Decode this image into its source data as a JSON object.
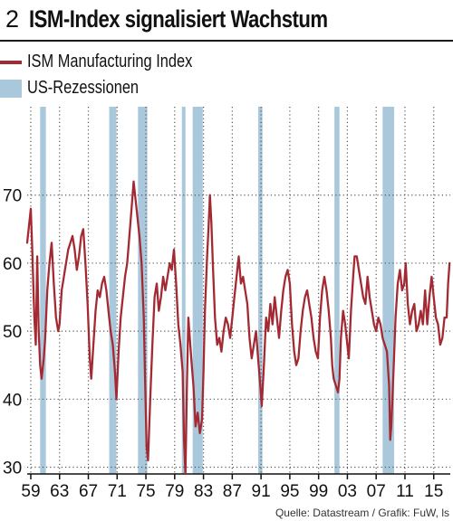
{
  "header": {
    "figure_number": "2",
    "title": "ISM-Index signalisiert Wachstum"
  },
  "legend": [
    {
      "label": "ISM Manufacturing Index",
      "color": "#a32a33",
      "kind": "line"
    },
    {
      "label": "US-Rezessionen",
      "color": "#a9c8dc",
      "kind": "band"
    }
  ],
  "source": "Quelle: Datastream / Grafik: FuW, ls",
  "chart_data": {
    "type": "line",
    "title": "ISM-Index signalisiert Wachstum",
    "xlabel": "",
    "ylabel": "",
    "xlim": [
      1958.5,
      2017.3
    ],
    "ylim": [
      29,
      83
    ],
    "x_tick_labels": [
      "59",
      "63",
      "67",
      "71",
      "75",
      "79",
      "83",
      "87",
      "91",
      "95",
      "99",
      "03",
      "07",
      "11",
      "15"
    ],
    "x_tick_years": [
      1959,
      1963,
      1967,
      1971,
      1975,
      1979,
      1983,
      1987,
      1991,
      1995,
      1999,
      2003,
      2007,
      2011,
      2015
    ],
    "y_ticks": [
      30,
      40,
      50,
      60,
      70
    ],
    "grid": "dotted",
    "recessions": [
      [
        1960.3,
        1961.1
      ],
      [
        1969.9,
        1970.9
      ],
      [
        1973.9,
        1975.2
      ],
      [
        1980.0,
        1980.5
      ],
      [
        1981.5,
        1982.9
      ],
      [
        1990.6,
        1991.2
      ],
      [
        2001.2,
        2001.9
      ],
      [
        2007.9,
        2009.5
      ]
    ],
    "series": [
      {
        "name": "ISM Manufacturing Index",
        "color": "#a32a33",
        "points": [
          [
            1958.5,
            63
          ],
          [
            1958.8,
            66
          ],
          [
            1959.0,
            68
          ],
          [
            1959.2,
            62
          ],
          [
            1959.5,
            52
          ],
          [
            1959.7,
            48
          ],
          [
            1959.9,
            61
          ],
          [
            1960.1,
            50
          ],
          [
            1960.3,
            45
          ],
          [
            1960.5,
            43
          ],
          [
            1960.8,
            46
          ],
          [
            1961.0,
            49
          ],
          [
            1961.3,
            56
          ],
          [
            1961.6,
            60
          ],
          [
            1961.9,
            63
          ],
          [
            1962.2,
            57
          ],
          [
            1962.5,
            52
          ],
          [
            1962.8,
            50
          ],
          [
            1963.0,
            51
          ],
          [
            1963.3,
            56
          ],
          [
            1963.6,
            58
          ],
          [
            1963.9,
            60
          ],
          [
            1964.2,
            62
          ],
          [
            1964.5,
            63
          ],
          [
            1964.8,
            64
          ],
          [
            1965.1,
            62
          ],
          [
            1965.4,
            59
          ],
          [
            1965.7,
            61
          ],
          [
            1966.0,
            64
          ],
          [
            1966.3,
            65
          ],
          [
            1966.6,
            60
          ],
          [
            1966.9,
            54
          ],
          [
            1967.2,
            46
          ],
          [
            1967.4,
            43
          ],
          [
            1967.7,
            48
          ],
          [
            1968.0,
            53
          ],
          [
            1968.3,
            56
          ],
          [
            1968.6,
            55
          ],
          [
            1968.9,
            57
          ],
          [
            1969.2,
            58
          ],
          [
            1969.5,
            56
          ],
          [
            1969.8,
            53
          ],
          [
            1970.1,
            50
          ],
          [
            1970.4,
            48
          ],
          [
            1970.7,
            44
          ],
          [
            1970.9,
            40
          ],
          [
            1971.2,
            47
          ],
          [
            1971.5,
            52
          ],
          [
            1971.8,
            55
          ],
          [
            1972.1,
            58
          ],
          [
            1972.4,
            60
          ],
          [
            1972.7,
            64
          ],
          [
            1973.0,
            68
          ],
          [
            1973.3,
            72
          ],
          [
            1973.5,
            70
          ],
          [
            1973.8,
            67
          ],
          [
            1974.1,
            64
          ],
          [
            1974.4,
            60
          ],
          [
            1974.7,
            52
          ],
          [
            1974.9,
            42
          ],
          [
            1975.1,
            33
          ],
          [
            1975.3,
            31
          ],
          [
            1975.6,
            40
          ],
          [
            1975.9,
            48
          ],
          [
            1976.2,
            55
          ],
          [
            1976.5,
            57
          ],
          [
            1976.8,
            53
          ],
          [
            1977.1,
            55
          ],
          [
            1977.4,
            58
          ],
          [
            1977.7,
            56
          ],
          [
            1978.0,
            58
          ],
          [
            1978.3,
            60
          ],
          [
            1978.6,
            59
          ],
          [
            1978.9,
            62
          ],
          [
            1979.2,
            57
          ],
          [
            1979.5,
            51
          ],
          [
            1979.8,
            48
          ],
          [
            1980.1,
            44
          ],
          [
            1980.3,
            34
          ],
          [
            1980.5,
            29
          ],
          [
            1980.7,
            42
          ],
          [
            1980.9,
            52
          ],
          [
            1981.1,
            49
          ],
          [
            1981.3,
            46
          ],
          [
            1981.6,
            42
          ],
          [
            1981.9,
            36
          ],
          [
            1982.2,
            38
          ],
          [
            1982.5,
            35
          ],
          [
            1982.8,
            37
          ],
          [
            1983.0,
            44
          ],
          [
            1983.2,
            53
          ],
          [
            1983.5,
            61
          ],
          [
            1983.7,
            65
          ],
          [
            1983.9,
            70
          ],
          [
            1984.1,
            66
          ],
          [
            1984.3,
            60
          ],
          [
            1984.6,
            52
          ],
          [
            1984.9,
            48
          ],
          [
            1985.2,
            49
          ],
          [
            1985.5,
            47
          ],
          [
            1985.8,
            50
          ],
          [
            1986.1,
            52
          ],
          [
            1986.4,
            51
          ],
          [
            1986.7,
            49
          ],
          [
            1987.0,
            52
          ],
          [
            1987.3,
            55
          ],
          [
            1987.6,
            58
          ],
          [
            1987.9,
            61
          ],
          [
            1988.2,
            57
          ],
          [
            1988.5,
            58
          ],
          [
            1988.8,
            56
          ],
          [
            1989.1,
            54
          ],
          [
            1989.4,
            49
          ],
          [
            1989.7,
            46
          ],
          [
            1990.0,
            48
          ],
          [
            1990.3,
            50
          ],
          [
            1990.6,
            46
          ],
          [
            1990.9,
            42
          ],
          [
            1991.1,
            39
          ],
          [
            1991.4,
            45
          ],
          [
            1991.7,
            52
          ],
          [
            1992.0,
            50
          ],
          [
            1992.3,
            54
          ],
          [
            1992.6,
            51
          ],
          [
            1992.9,
            55
          ],
          [
            1993.2,
            52
          ],
          [
            1993.5,
            49
          ],
          [
            1993.8,
            53
          ],
          [
            1994.1,
            56
          ],
          [
            1994.4,
            58
          ],
          [
            1994.7,
            59
          ],
          [
            1995.0,
            57
          ],
          [
            1995.3,
            51
          ],
          [
            1995.6,
            47
          ],
          [
            1995.9,
            45
          ],
          [
            1996.2,
            46
          ],
          [
            1996.5,
            50
          ],
          [
            1996.8,
            53
          ],
          [
            1997.1,
            55
          ],
          [
            1997.4,
            56
          ],
          [
            1997.7,
            54
          ],
          [
            1998.0,
            52
          ],
          [
            1998.3,
            49
          ],
          [
            1998.6,
            47
          ],
          [
            1998.9,
            46
          ],
          [
            1999.2,
            52
          ],
          [
            1999.5,
            56
          ],
          [
            1999.8,
            58
          ],
          [
            2000.1,
            56
          ],
          [
            2000.4,
            53
          ],
          [
            2000.7,
            49
          ],
          [
            2000.9,
            45
          ],
          [
            2001.1,
            43
          ],
          [
            2001.4,
            42
          ],
          [
            2001.7,
            41
          ],
          [
            2001.9,
            43
          ],
          [
            2002.1,
            49
          ],
          [
            2002.4,
            53
          ],
          [
            2002.7,
            51
          ],
          [
            2002.9,
            49
          ],
          [
            2003.2,
            46
          ],
          [
            2003.5,
            53
          ],
          [
            2003.8,
            58
          ],
          [
            2004.0,
            61
          ],
          [
            2004.3,
            61
          ],
          [
            2004.6,
            59
          ],
          [
            2004.9,
            57
          ],
          [
            2005.2,
            55
          ],
          [
            2005.5,
            54
          ],
          [
            2005.8,
            58
          ],
          [
            2006.1,
            55
          ],
          [
            2006.4,
            53
          ],
          [
            2006.7,
            51
          ],
          [
            2007.0,
            50
          ],
          [
            2007.3,
            52
          ],
          [
            2007.6,
            51
          ],
          [
            2007.9,
            49
          ],
          [
            2008.2,
            48
          ],
          [
            2008.5,
            47
          ],
          [
            2008.8,
            42
          ],
          [
            2008.95,
            34
          ],
          [
            2009.1,
            36
          ],
          [
            2009.4,
            44
          ],
          [
            2009.7,
            52
          ],
          [
            2010.0,
            57
          ],
          [
            2010.3,
            59
          ],
          [
            2010.6,
            56
          ],
          [
            2010.9,
            57
          ],
          [
            2011.1,
            60
          ],
          [
            2011.4,
            54
          ],
          [
            2011.7,
            51
          ],
          [
            2012.0,
            53
          ],
          [
            2012.3,
            54
          ],
          [
            2012.6,
            50
          ],
          [
            2012.9,
            51
          ],
          [
            2013.2,
            53
          ],
          [
            2013.5,
            51
          ],
          [
            2013.8,
            56
          ],
          [
            2014.1,
            51
          ],
          [
            2014.4,
            55
          ],
          [
            2014.7,
            58
          ],
          [
            2015.0,
            55
          ],
          [
            2015.3,
            52
          ],
          [
            2015.6,
            51
          ],
          [
            2015.9,
            48
          ],
          [
            2016.2,
            49
          ],
          [
            2016.5,
            52
          ],
          [
            2016.8,
            52
          ],
          [
            2017.0,
            57
          ],
          [
            2017.2,
            60
          ]
        ]
      }
    ]
  }
}
